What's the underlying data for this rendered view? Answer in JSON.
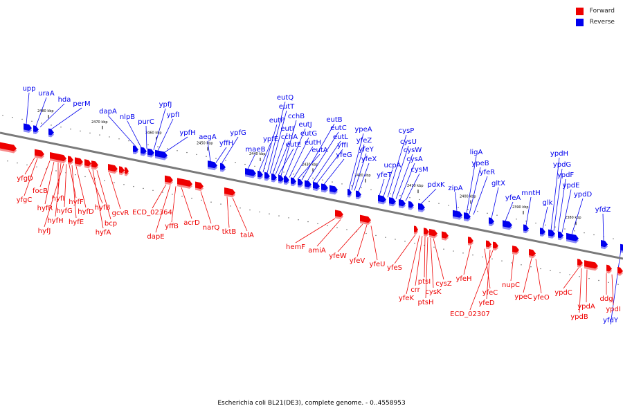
{
  "colors": {
    "forward": "#ee0000",
    "reverse": "#0000ee",
    "backbone": "#7a7a7a",
    "text": "#000000"
  },
  "legend": [
    {
      "label": "Forward",
      "color": "#ee0000"
    },
    {
      "label": "Reverse",
      "color": "#0000ee"
    }
  ],
  "caption": "Escherichia coli BL21(DE3), complete genome. - 0..4558953",
  "scale_labels": [
    "2480 kbp",
    "2470 kbp",
    "2460 kbp",
    "2450 kbp",
    "2440 kbp",
    "2430 kbp",
    "2420 kbp",
    "2410 kbp",
    "2400 kbp",
    "2390 kbp",
    "2380 kbp"
  ],
  "reverse_labels": [
    "upp",
    "uraA",
    "hda",
    "perM",
    "dapA",
    "nlpB",
    "purC",
    "ypfJ",
    "ypfI",
    "ypfH",
    "aegA",
    "yffH",
    "ypfG",
    "maeB",
    "ypfE",
    "eutP",
    "eutQ",
    "eutT",
    "eutI",
    "cchA",
    "eutE",
    "cchB",
    "eutJ",
    "eutG",
    "eutH",
    "eutA",
    "eutB",
    "eutC",
    "eutL",
    "yffI",
    "yfeG",
    "ypeA",
    "yfeZ",
    "yfeY",
    "yfeX",
    "yfeT",
    "ucpA",
    "cysP",
    "cysU",
    "cysW",
    "cysA",
    "cysM",
    "pdxK",
    "zipA",
    "ligA",
    "ypeB",
    "yfeR",
    "gltX",
    "yfeA",
    "mntH",
    "glk",
    "ypdH",
    "ypdG",
    "ypdF",
    "ypdE",
    "ypdD",
    "yfdZ",
    "yfdY"
  ],
  "forward_labels": [
    "yfgD",
    "yfgC",
    "focB",
    "hyfR",
    "hyfI",
    "hyfH",
    "hyfJ",
    "hyfG",
    "hyfF",
    "hyfE",
    "hyfD",
    "hyfB",
    "hyfA",
    "bcp",
    "gcvR",
    "ECD_02364",
    "dapE",
    "yffB",
    "acrD",
    "narQ",
    "tktB",
    "talA",
    "hemF",
    "amiA",
    "yfeW",
    "yfeV",
    "yfeU",
    "yfeS",
    "yfeK",
    "crr",
    "ptsI",
    "ptsH",
    "cysK",
    "cysZ",
    "yfeH",
    "yfeC",
    "yfeD",
    "ECD_02307",
    "nupC",
    "ypeC",
    "yfeO",
    "ypdC",
    "ypdB",
    "ypdA",
    "ddg",
    "ypdI"
  ]
}
